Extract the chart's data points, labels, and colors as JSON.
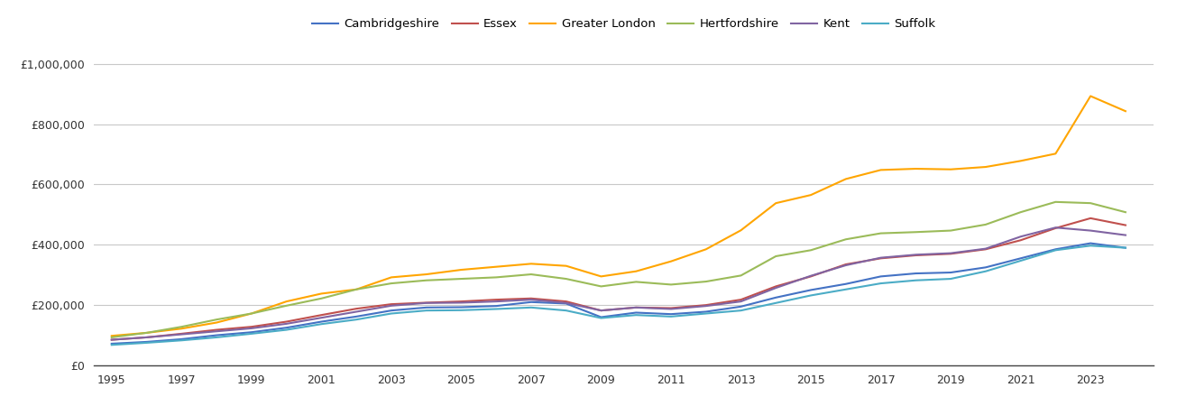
{
  "series": {
    "Cambridgeshire": {
      "color": "#4472C4",
      "data": {
        "1995": 72000,
        "1996": 78000,
        "1997": 87000,
        "1998": 100000,
        "1999": 110000,
        "2000": 125000,
        "2001": 145000,
        "2002": 162000,
        "2003": 182000,
        "2004": 192000,
        "2005": 193000,
        "2006": 197000,
        "2007": 210000,
        "2008": 205000,
        "2009": 160000,
        "2010": 175000,
        "2011": 170000,
        "2012": 178000,
        "2013": 195000,
        "2014": 225000,
        "2015": 250000,
        "2016": 270000,
        "2017": 295000,
        "2018": 305000,
        "2019": 308000,
        "2020": 325000,
        "2021": 355000,
        "2022": 385000,
        "2023": 405000,
        "2024": 390000
      }
    },
    "Essex": {
      "color": "#C0504D",
      "data": {
        "1995": 85000,
        "1996": 93000,
        "1997": 105000,
        "1998": 118000,
        "1999": 128000,
        "2000": 145000,
        "2001": 167000,
        "2002": 188000,
        "2003": 203000,
        "2004": 208000,
        "2005": 212000,
        "2006": 218000,
        "2007": 222000,
        "2008": 212000,
        "2009": 182000,
        "2010": 192000,
        "2011": 190000,
        "2012": 200000,
        "2013": 218000,
        "2014": 262000,
        "2015": 295000,
        "2016": 335000,
        "2017": 355000,
        "2018": 365000,
        "2019": 370000,
        "2020": 385000,
        "2021": 415000,
        "2022": 455000,
        "2023": 488000,
        "2024": 465000
      }
    },
    "Greater London": {
      "color": "#FFA500",
      "data": {
        "1995": 98000,
        "1996": 108000,
        "1997": 122000,
        "1998": 142000,
        "1999": 172000,
        "2000": 212000,
        "2001": 238000,
        "2002": 252000,
        "2003": 292000,
        "2004": 302000,
        "2005": 317000,
        "2006": 327000,
        "2007": 337000,
        "2008": 330000,
        "2009": 295000,
        "2010": 312000,
        "2011": 345000,
        "2012": 385000,
        "2013": 448000,
        "2014": 538000,
        "2015": 565000,
        "2016": 618000,
        "2017": 648000,
        "2018": 652000,
        "2019": 650000,
        "2020": 658000,
        "2021": 678000,
        "2022": 702000,
        "2023": 893000,
        "2024": 843000
      }
    },
    "Hertfordshire": {
      "color": "#9BBB59",
      "data": {
        "1995": 93000,
        "1996": 108000,
        "1997": 128000,
        "1998": 152000,
        "1999": 172000,
        "2000": 198000,
        "2001": 222000,
        "2002": 252000,
        "2003": 272000,
        "2004": 282000,
        "2005": 287000,
        "2006": 292000,
        "2007": 302000,
        "2008": 287000,
        "2009": 262000,
        "2010": 277000,
        "2011": 268000,
        "2012": 278000,
        "2013": 298000,
        "2014": 362000,
        "2015": 382000,
        "2016": 418000,
        "2017": 438000,
        "2018": 442000,
        "2019": 447000,
        "2020": 467000,
        "2021": 508000,
        "2022": 542000,
        "2023": 538000,
        "2024": 508000
      }
    },
    "Kent": {
      "color": "#8064A2",
      "data": {
        "1995": 85000,
        "1996": 93000,
        "1997": 103000,
        "1998": 113000,
        "1999": 123000,
        "2000": 138000,
        "2001": 158000,
        "2002": 178000,
        "2003": 198000,
        "2004": 207000,
        "2005": 208000,
        "2006": 212000,
        "2007": 218000,
        "2008": 207000,
        "2009": 182000,
        "2010": 192000,
        "2011": 187000,
        "2012": 197000,
        "2013": 212000,
        "2014": 257000,
        "2015": 297000,
        "2016": 332000,
        "2017": 357000,
        "2018": 367000,
        "2019": 372000,
        "2020": 387000,
        "2021": 427000,
        "2022": 457000,
        "2023": 447000,
        "2024": 432000
      }
    },
    "Suffolk": {
      "color": "#4BACC6",
      "data": {
        "1995": 68000,
        "1996": 75000,
        "1997": 83000,
        "1998": 93000,
        "1999": 105000,
        "2000": 118000,
        "2001": 137000,
        "2002": 152000,
        "2003": 172000,
        "2004": 182000,
        "2005": 183000,
        "2006": 187000,
        "2007": 192000,
        "2008": 182000,
        "2009": 157000,
        "2010": 167000,
        "2011": 162000,
        "2012": 172000,
        "2013": 182000,
        "2014": 207000,
        "2015": 232000,
        "2016": 252000,
        "2017": 272000,
        "2018": 282000,
        "2019": 287000,
        "2020": 312000,
        "2021": 347000,
        "2022": 382000,
        "2023": 397000,
        "2024": 390000
      }
    }
  },
  "ylim": [
    0,
    1050000
  ],
  "yticks": [
    0,
    200000,
    400000,
    600000,
    800000,
    1000000
  ],
  "xtick_years": [
    1995,
    1997,
    1999,
    2001,
    2003,
    2005,
    2007,
    2009,
    2011,
    2013,
    2015,
    2017,
    2019,
    2021,
    2023
  ],
  "xlim_left": 1994.5,
  "xlim_right": 2024.8,
  "background_color": "#FFFFFF",
  "grid_color": "#C8C8C8",
  "legend_order": [
    "Cambridgeshire",
    "Essex",
    "Greater London",
    "Hertfordshire",
    "Kent",
    "Suffolk"
  ]
}
